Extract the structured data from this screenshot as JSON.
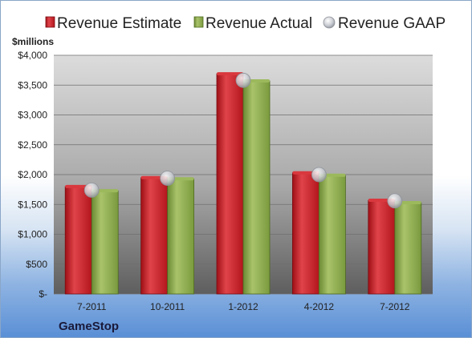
{
  "company": "GameStop",
  "chart_data": {
    "type": "bar",
    "categories": [
      "7-2011",
      "10-2011",
      "1-2012",
      "4-2012",
      "7-2012"
    ],
    "series": [
      {
        "name": "Revenue Estimate",
        "values": [
          1800,
          1950,
          3690,
          2030,
          1570
        ],
        "color": "#cc1f26"
      },
      {
        "name": "Revenue Actual",
        "values": [
          1730,
          1930,
          3570,
          1990,
          1530
        ],
        "color": "#8fae4e"
      }
    ],
    "markers": {
      "name": "Revenue GAAP",
      "values": [
        1740,
        1940,
        3580,
        2000,
        1560
      ],
      "color": "#b8bcc4"
    },
    "ylabel": "$millions",
    "ylim": [
      0,
      4000
    ],
    "yticks": [
      0,
      500,
      1000,
      1500,
      2000,
      2500,
      3000,
      3500,
      4000
    ],
    "ytick_labels": [
      "$-",
      "$500",
      "$1,000",
      "$1,500",
      "$2,000",
      "$2,500",
      "$3,000",
      "$3,500",
      "$4,000"
    ],
    "grid": true,
    "legend": "top"
  }
}
